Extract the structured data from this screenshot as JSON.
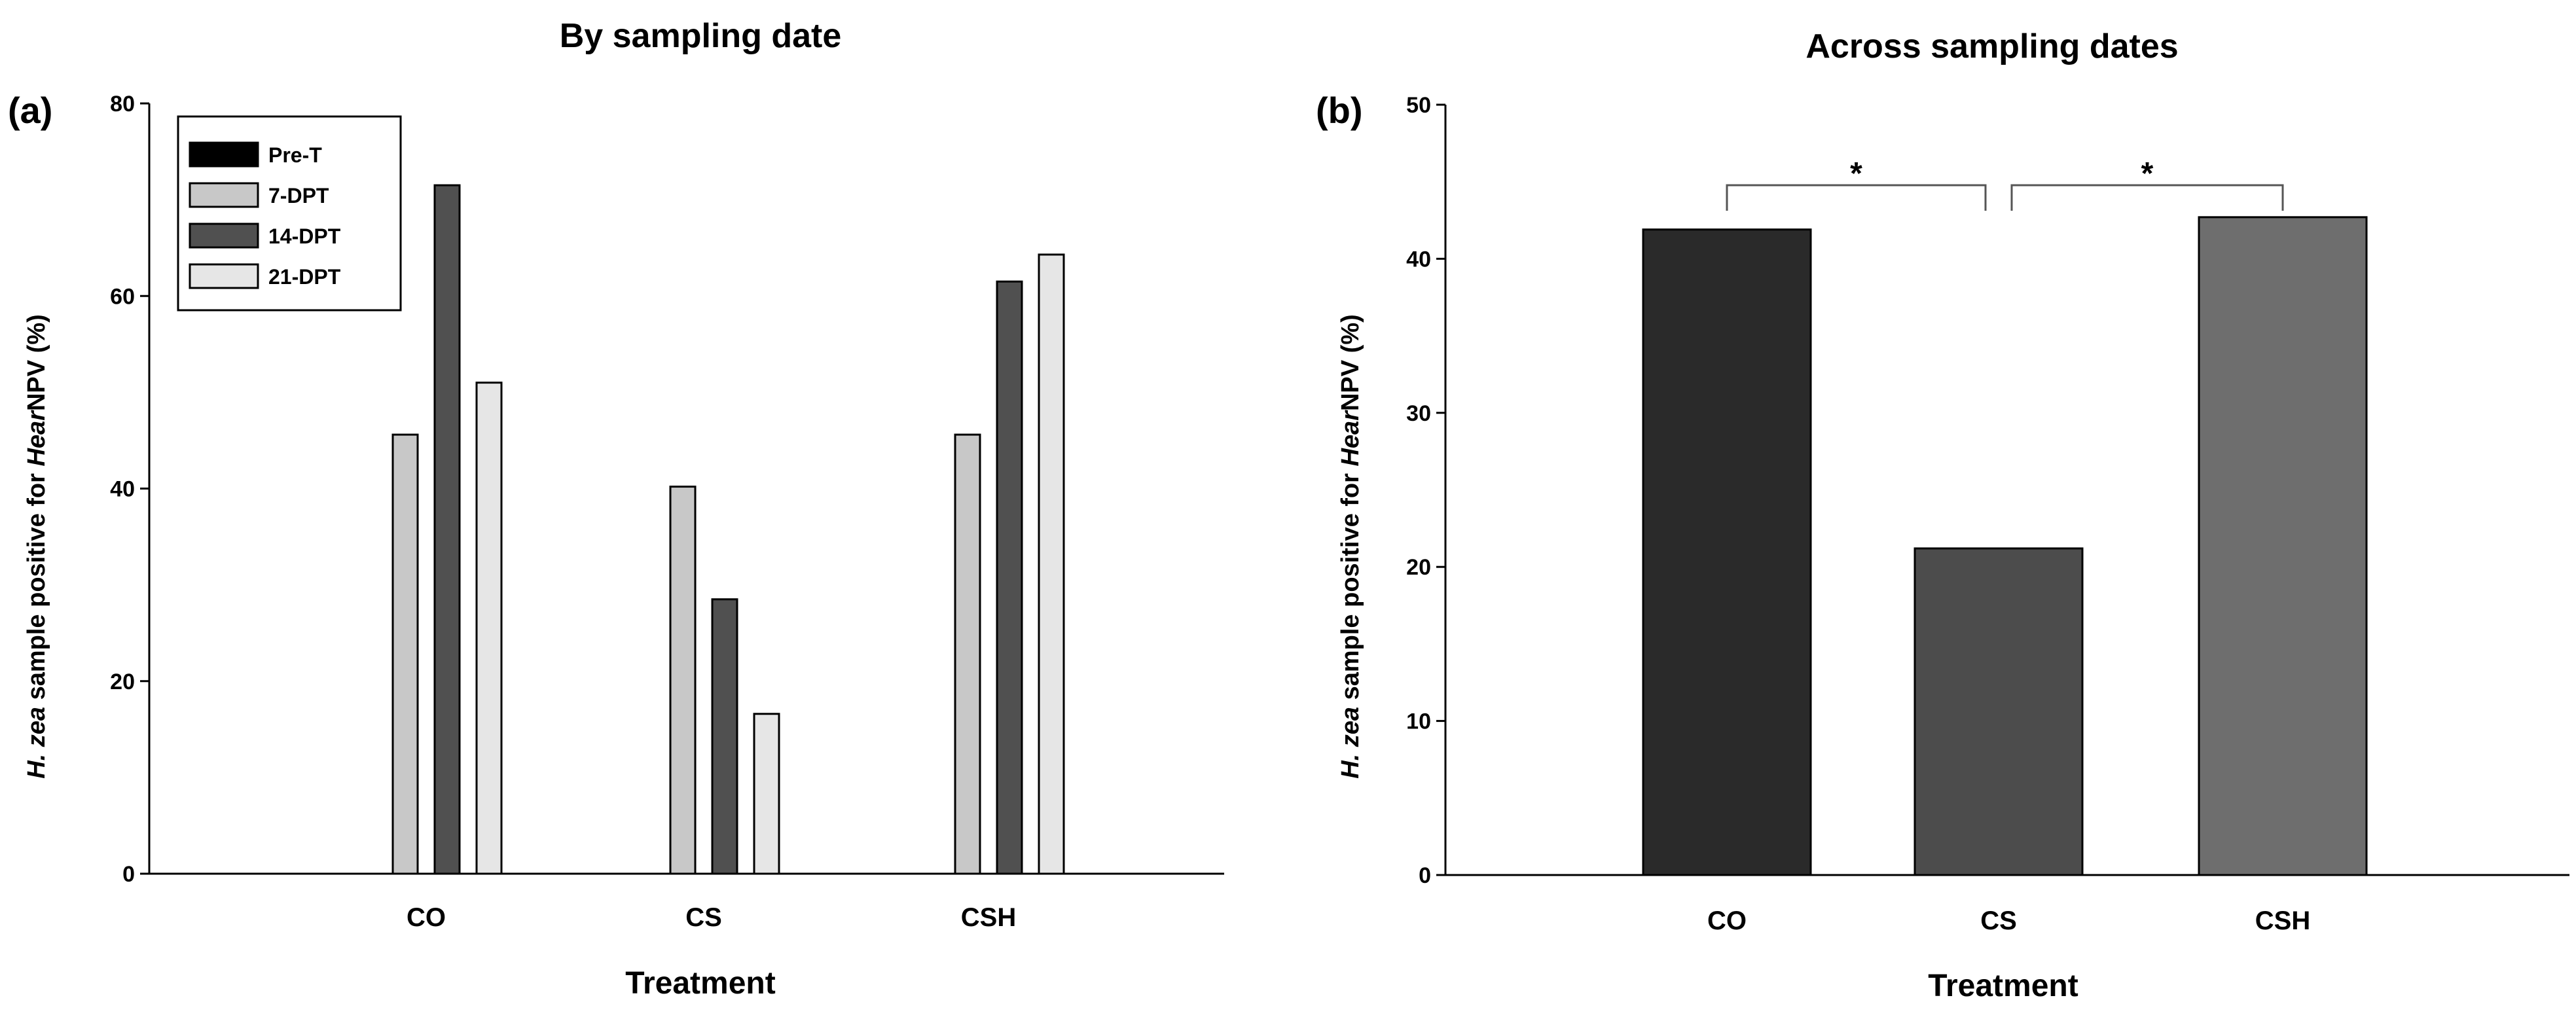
{
  "chart_data": [
    {
      "type": "bar",
      "panel_label": "(a)",
      "title": "By sampling date",
      "xlabel": "Treatment",
      "ylabel_prefix": "H. zea",
      "ylabel_mid": " sample positive for ",
      "ylabel_italic": "Hear",
      "ylabel_suffix": "NPV (%)",
      "ylim": [
        0,
        80
      ],
      "yticks": [
        0,
        20,
        40,
        60,
        80
      ],
      "categories": [
        "CO",
        "CS",
        "CSH"
      ],
      "legend_position": "top-left",
      "series": [
        {
          "name": "Pre-T",
          "color": "#000000",
          "values": [
            0,
            0,
            0
          ]
        },
        {
          "name": "7-DPT",
          "color": "#c8c8c8",
          "values": [
            45.6,
            40.2,
            45.6
          ]
        },
        {
          "name": "14-DPT",
          "color": "#505050",
          "values": [
            71.5,
            28.5,
            61.5
          ]
        },
        {
          "name": "21-DPT",
          "color": "#e6e6e6",
          "values": [
            51.0,
            16.6,
            64.3
          ]
        }
      ]
    },
    {
      "type": "bar",
      "panel_label": "(b)",
      "title": "Across sampling dates",
      "xlabel": "Treatment",
      "ylabel_prefix": "H. zea",
      "ylabel_mid": " sample positive for ",
      "ylabel_italic": "Hear",
      "ylabel_suffix": "NPV (%)",
      "ylim": [
        0,
        50
      ],
      "yticks": [
        0,
        10,
        20,
        30,
        40,
        50
      ],
      "categories": [
        "CO",
        "CS",
        "CSH"
      ],
      "values": [
        41.9,
        21.2,
        42.7
      ],
      "colors": [
        "#2a2a2a",
        "#4c4c4c",
        "#6e6e6e"
      ],
      "significance": [
        {
          "from": "CO",
          "to": "CS",
          "label": "*"
        },
        {
          "from": "CS",
          "to": "CSH",
          "label": "*"
        }
      ]
    }
  ]
}
